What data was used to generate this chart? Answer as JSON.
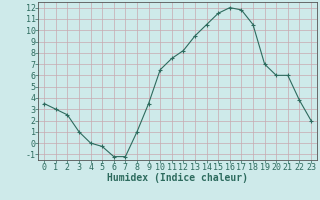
{
  "x": [
    0,
    1,
    2,
    3,
    4,
    5,
    6,
    7,
    8,
    9,
    10,
    11,
    12,
    13,
    14,
    15,
    16,
    17,
    18,
    19,
    20,
    21,
    22,
    23
  ],
  "y": [
    3.5,
    3.0,
    2.5,
    1.0,
    0.0,
    -0.3,
    -1.2,
    -1.2,
    1.0,
    3.5,
    6.5,
    7.5,
    8.2,
    9.5,
    10.5,
    11.5,
    12.0,
    11.8,
    10.5,
    7.0,
    6.0,
    6.0,
    3.8,
    2.0
  ],
  "line_color": "#2d6b5e",
  "marker": "+",
  "bg_color": "#ceeaea",
  "grid_color": "#c8a8b0",
  "xlabel": "Humidex (Indice chaleur)",
  "xlim": [
    -0.5,
    23.5
  ],
  "ylim": [
    -1.5,
    12.5
  ],
  "xticks": [
    0,
    1,
    2,
    3,
    4,
    5,
    6,
    7,
    8,
    9,
    10,
    11,
    12,
    13,
    14,
    15,
    16,
    17,
    18,
    19,
    20,
    21,
    22,
    23
  ],
  "yticks": [
    -1,
    0,
    1,
    2,
    3,
    4,
    5,
    6,
    7,
    8,
    9,
    10,
    11,
    12
  ],
  "xlabel_fontsize": 7,
  "tick_fontsize": 6,
  "tick_color": "#2d6b5e",
  "label_color": "#2d6b5e"
}
